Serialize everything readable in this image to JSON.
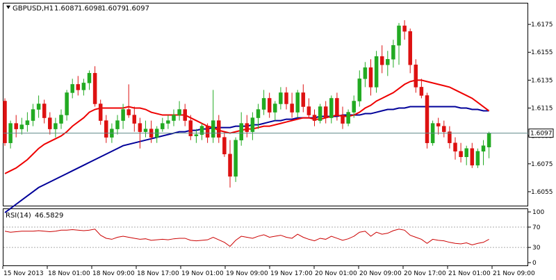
{
  "header": {
    "symbol": "GBPUSD,H1",
    "open": "1.6087",
    "high": "1.6098",
    "low": "1.6079",
    "close": "1.6097",
    "icon": "chart-down-arrow-icon"
  },
  "rsi_header": {
    "label": "RSI(14)",
    "value": "46.5829"
  },
  "colors": {
    "bull": "#22aa22",
    "bear": "#dd1111",
    "ma_fast": "#ee0000",
    "ma_slow": "#000099",
    "rsi": "#cc0000",
    "price_line": "#5f8a8a",
    "border": "#000000",
    "label_bg": "#ffffff"
  },
  "chart_data": [
    {
      "type": "candlestick",
      "title": "GBPUSD,H1",
      "ylim": [
        1.6045,
        1.619
      ],
      "y_ticks": [
        "1.6175",
        "1.6155",
        "1.6135",
        "1.6115",
        "1.6095",
        "1.6075",
        "1.6055"
      ],
      "current_price": 1.6097,
      "current_price_label": "1.6097",
      "x_labels": [
        "15 Nov 2013",
        "18 Nov 01:00",
        "18 Nov 09:00",
        "18 Nov 17:00",
        "19 Nov 01:00",
        "19 Nov 09:00",
        "19 Nov 17:00",
        "20 Nov 01:00",
        "20 Nov 09:00",
        "20 Nov 17:00",
        "21 Nov 01:00",
        "21 Nov 09:00"
      ],
      "candles": [
        [
          1.612,
          1.6122,
          1.6088,
          1.609
        ],
        [
          1.609,
          1.6106,
          1.6086,
          1.6104
        ],
        [
          1.6104,
          1.611,
          1.6094,
          1.61
        ],
        [
          1.61,
          1.6108,
          1.6096,
          1.6103
        ],
        [
          1.6103,
          1.6112,
          1.6098,
          1.6106
        ],
        [
          1.6106,
          1.6118,
          1.6102,
          1.6114
        ],
        [
          1.6114,
          1.6124,
          1.6108,
          1.6118
        ],
        [
          1.6118,
          1.6121,
          1.6104,
          1.6108
        ],
        [
          1.6108,
          1.6112,
          1.6096,
          1.61
        ],
        [
          1.61,
          1.6108,
          1.6094,
          1.6104
        ],
        [
          1.6104,
          1.6114,
          1.61,
          1.611
        ],
        [
          1.611,
          1.6128,
          1.6106,
          1.6126
        ],
        [
          1.6126,
          1.6136,
          1.6122,
          1.6132
        ],
        [
          1.6132,
          1.6138,
          1.6124,
          1.6128
        ],
        [
          1.6128,
          1.6136,
          1.6124,
          1.6133
        ],
        [
          1.6133,
          1.6142,
          1.6128,
          1.614
        ],
        [
          1.614,
          1.6145,
          1.6116,
          1.6118
        ],
        [
          1.6118,
          1.6121,
          1.6103,
          1.6106
        ],
        [
          1.6106,
          1.611,
          1.609,
          1.6094
        ],
        [
          1.6094,
          1.6104,
          1.609,
          1.61
        ],
        [
          1.61,
          1.611,
          1.6096,
          1.6106
        ],
        [
          1.6106,
          1.6118,
          1.61,
          1.6114
        ],
        [
          1.6114,
          1.6132,
          1.6108,
          1.611
        ],
        [
          1.611,
          1.6116,
          1.6098,
          1.6104
        ],
        [
          1.6104,
          1.6108,
          1.6086,
          1.6098
        ],
        [
          1.6098,
          1.6106,
          1.6094,
          1.61
        ],
        [
          1.61,
          1.6106,
          1.609,
          1.6094
        ],
        [
          1.6094,
          1.6102,
          1.609,
          1.61
        ],
        [
          1.61,
          1.6108,
          1.6098,
          1.6104
        ],
        [
          1.6104,
          1.611,
          1.61,
          1.6106
        ],
        [
          1.6106,
          1.6114,
          1.6102,
          1.611
        ],
        [
          1.611,
          1.612,
          1.6106,
          1.6114
        ],
        [
          1.6114,
          1.6118,
          1.6102,
          1.6106
        ],
        [
          1.6106,
          1.611,
          1.6092,
          1.6095
        ],
        [
          1.6095,
          1.61,
          1.609,
          1.6096
        ],
        [
          1.6096,
          1.6104,
          1.6092,
          1.6102
        ],
        [
          1.6102,
          1.6104,
          1.609,
          1.6094
        ],
        [
          1.6094,
          1.6128,
          1.609,
          1.6106
        ],
        [
          1.6106,
          1.611,
          1.609,
          1.6094
        ],
        [
          1.6094,
          1.6098,
          1.608,
          1.6082
        ],
        [
          1.6082,
          1.6092,
          1.6058,
          1.6066
        ],
        [
          1.6066,
          1.6094,
          1.6062,
          1.6092
        ],
        [
          1.6092,
          1.6112,
          1.6088,
          1.6104
        ],
        [
          1.6104,
          1.611,
          1.6094,
          1.6098
        ],
        [
          1.6098,
          1.6112,
          1.6092,
          1.6108
        ],
        [
          1.6108,
          1.6118,
          1.61,
          1.6114
        ],
        [
          1.6114,
          1.6128,
          1.611,
          1.6122
        ],
        [
          1.6122,
          1.6126,
          1.6108,
          1.6112
        ],
        [
          1.6112,
          1.612,
          1.6106,
          1.6118
        ],
        [
          1.6118,
          1.613,
          1.6114,
          1.6126
        ],
        [
          1.6126,
          1.613,
          1.6114,
          1.6118
        ],
        [
          1.6118,
          1.6126,
          1.6108,
          1.6112
        ],
        [
          1.6112,
          1.6128,
          1.6108,
          1.6126
        ],
        [
          1.6126,
          1.6132,
          1.6112,
          1.6116
        ],
        [
          1.6116,
          1.6122,
          1.6108,
          1.611
        ],
        [
          1.611,
          1.6114,
          1.6102,
          1.6106
        ],
        [
          1.6106,
          1.6118,
          1.6104,
          1.6116
        ],
        [
          1.6116,
          1.612,
          1.6104,
          1.6108
        ],
        [
          1.6108,
          1.6124,
          1.6104,
          1.6122
        ],
        [
          1.6122,
          1.6126,
          1.6106,
          1.611
        ],
        [
          1.611,
          1.6116,
          1.61,
          1.6104
        ],
        [
          1.6104,
          1.6114,
          1.6102,
          1.6112
        ],
        [
          1.6112,
          1.6124,
          1.6108,
          1.612
        ],
        [
          1.612,
          1.6142,
          1.6116,
          1.6136
        ],
        [
          1.6136,
          1.6148,
          1.613,
          1.6144
        ],
        [
          1.6144,
          1.615,
          1.6124,
          1.613
        ],
        [
          1.613,
          1.6156,
          1.6126,
          1.6152
        ],
        [
          1.6152,
          1.616,
          1.614,
          1.6146
        ],
        [
          1.6146,
          1.6156,
          1.6138,
          1.615
        ],
        [
          1.615,
          1.6164,
          1.6144,
          1.616
        ],
        [
          1.616,
          1.6176,
          1.6146,
          1.6174
        ],
        [
          1.6174,
          1.6178,
          1.6164,
          1.617
        ],
        [
          1.617,
          1.6172,
          1.614,
          1.6146
        ],
        [
          1.6146,
          1.615,
          1.6126,
          1.613
        ],
        [
          1.613,
          1.6136,
          1.6122,
          1.6124
        ],
        [
          1.6124,
          1.6126,
          1.6086,
          1.609
        ],
        [
          1.609,
          1.6106,
          1.6088,
          1.6104
        ],
        [
          1.6104,
          1.6108,
          1.6096,
          1.6102
        ],
        [
          1.6102,
          1.6106,
          1.6094,
          1.6098
        ],
        [
          1.6098,
          1.6102,
          1.6086,
          1.609
        ],
        [
          1.609,
          1.6094,
          1.6078,
          1.6084
        ],
        [
          1.6084,
          1.609,
          1.6076,
          1.608
        ],
        [
          1.608,
          1.6088,
          1.6074,
          1.6086
        ],
        [
          1.6086,
          1.609,
          1.6072,
          1.6074
        ],
        [
          1.6074,
          1.6086,
          1.6072,
          1.6084
        ],
        [
          1.6084,
          1.6092,
          1.6074,
          1.6088
        ],
        [
          1.6087,
          1.6098,
          1.6079,
          1.6097
        ]
      ],
      "ma_fast": [
        1.6068,
        1.607,
        1.6072,
        1.6075,
        1.6078,
        1.6082,
        1.6086,
        1.6089,
        1.6091,
        1.6093,
        1.6095,
        1.6098,
        1.6102,
        1.6105,
        1.6108,
        1.6112,
        1.6114,
        1.6115,
        1.6115,
        1.6115,
        1.6115,
        1.6115,
        1.6116,
        1.6115,
        1.6115,
        1.6114,
        1.6112,
        1.6111,
        1.611,
        1.611,
        1.611,
        1.611,
        1.611,
        1.6108,
        1.6106,
        1.6104,
        1.6102,
        1.6101,
        1.6099,
        1.6098,
        1.6097,
        1.6098,
        1.6099,
        1.61,
        1.61,
        1.6101,
        1.6102,
        1.6102,
        1.6103,
        1.6104,
        1.6105,
        1.6106,
        1.6107,
        1.6108,
        1.6108,
        1.6107,
        1.6107,
        1.6108,
        1.6109,
        1.611,
        1.6109,
        1.6109,
        1.611,
        1.6112,
        1.6115,
        1.6117,
        1.612,
        1.6122,
        1.6124,
        1.6126,
        1.6129,
        1.6132,
        1.6134,
        1.6135,
        1.6135,
        1.6134,
        1.6133,
        1.6132,
        1.6131,
        1.613,
        1.6128,
        1.6126,
        1.6124,
        1.6122,
        1.6119,
        1.6116,
        1.6113
      ],
      "ma_slow": [
        1.604,
        1.6043,
        1.6046,
        1.6049,
        1.6052,
        1.6055,
        1.6058,
        1.606,
        1.6062,
        1.6064,
        1.6066,
        1.6068,
        1.607,
        1.6072,
        1.6074,
        1.6076,
        1.6078,
        1.608,
        1.6082,
        1.6084,
        1.6086,
        1.6088,
        1.6089,
        1.609,
        1.6091,
        1.6092,
        1.6093,
        1.6094,
        1.6095,
        1.6096,
        1.6097,
        1.6098,
        1.6098,
        1.6099,
        1.6099,
        1.61,
        1.61,
        1.6101,
        1.6101,
        1.6101,
        1.6101,
        1.6102,
        1.6102,
        1.6102,
        1.6103,
        1.6103,
        1.6104,
        1.6105,
        1.6106,
        1.6106,
        1.6107,
        1.6107,
        1.6108,
        1.6108,
        1.6108,
        1.6108,
        1.6109,
        1.6109,
        1.6109,
        1.6109,
        1.611,
        1.611,
        1.611,
        1.611,
        1.6111,
        1.6111,
        1.6112,
        1.6113,
        1.6114,
        1.6114,
        1.6115,
        1.6115,
        1.6116,
        1.6116,
        1.6116,
        1.6116,
        1.6116,
        1.6116,
        1.6116,
        1.6116,
        1.6116,
        1.6115,
        1.6115,
        1.6114,
        1.6114,
        1.6113,
        1.6113
      ]
    },
    {
      "type": "line",
      "title": "RSI(14) 46.5829",
      "ylim": [
        0,
        100
      ],
      "y_ticks": [
        "100",
        "70",
        "30",
        "0"
      ],
      "levels": [
        70,
        30
      ],
      "values": [
        62,
        60,
        61,
        62,
        62,
        62,
        63,
        62,
        61,
        62,
        64,
        64,
        65,
        64,
        63,
        64,
        66,
        54,
        48,
        46,
        50,
        52,
        50,
        48,
        46,
        47,
        44,
        45,
        46,
        45,
        47,
        48,
        48,
        44,
        43,
        44,
        45,
        50,
        45,
        40,
        32,
        44,
        52,
        50,
        48,
        52,
        55,
        50,
        52,
        54,
        50,
        48,
        56,
        50,
        46,
        43,
        48,
        46,
        52,
        48,
        44,
        47,
        52,
        60,
        62,
        52,
        60,
        56,
        58,
        63,
        66,
        64,
        54,
        50,
        46,
        38,
        46,
        44,
        43,
        40,
        38,
        37,
        39,
        35,
        38,
        40,
        46
      ]
    }
  ]
}
